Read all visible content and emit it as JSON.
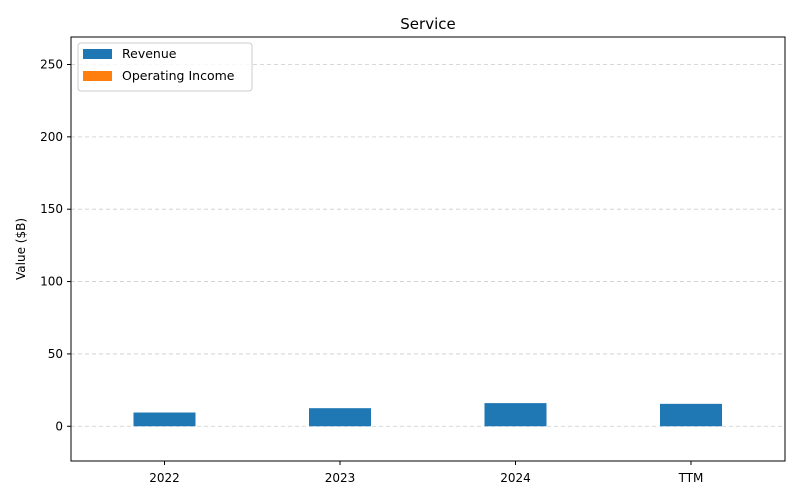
{
  "chart_data": {
    "type": "bar",
    "title": "Service",
    "xlabel": "",
    "ylabel": "Value ($B)",
    "categories": [
      "2022",
      "2023",
      "2024",
      "TTM"
    ],
    "series": [
      {
        "name": "Revenue",
        "color": "#1f77b4",
        "values": [
          9.5,
          12.5,
          16.0,
          15.5
        ]
      },
      {
        "name": "Operating Income",
        "color": "#ff7f0e",
        "values": [
          0,
          0,
          0,
          0
        ]
      }
    ],
    "ylim": [
      -24,
      269
    ],
    "yticks": [
      0,
      50,
      100,
      150,
      200,
      250
    ],
    "grid": true,
    "legend_position": "top-left"
  }
}
